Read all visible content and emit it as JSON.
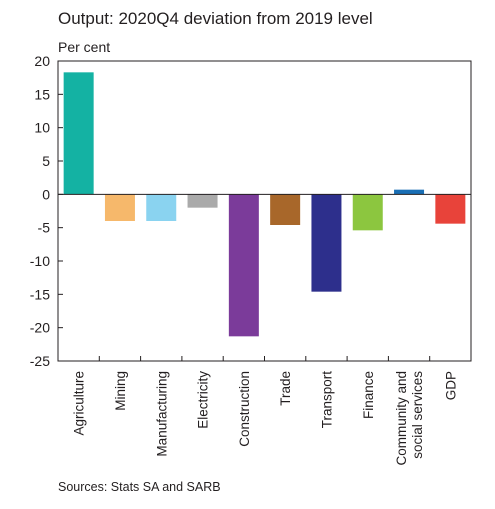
{
  "chart_data": {
    "type": "bar",
    "title": "Output: 2020Q4 deviation from 2019 level",
    "ylabel": "Per cent",
    "source": "Sources: Stats SA and SARB",
    "categories": [
      [
        "Agriculture"
      ],
      [
        "Mining"
      ],
      [
        "Manufacturing"
      ],
      [
        "Electricity"
      ],
      [
        "Construction"
      ],
      [
        "Trade"
      ],
      [
        "Transport"
      ],
      [
        "Finance"
      ],
      [
        "Community and",
        "social services"
      ],
      [
        "GDP"
      ]
    ],
    "values": [
      18.3,
      -4.0,
      -4.0,
      -2.0,
      -21.3,
      -4.6,
      -14.6,
      -5.4,
      0.7,
      -4.4
    ],
    "colors": [
      "#14b2a3",
      "#f6b86b",
      "#8ad3f0",
      "#aaaaaa",
      "#7b3b9a",
      "#a8672a",
      "#2d2f8c",
      "#8cc63f",
      "#1a6fb5",
      "#e8433a"
    ],
    "ylim": [
      -25,
      20
    ],
    "yticks": [
      20,
      15,
      10,
      5,
      0,
      -5,
      -10,
      -15,
      -20,
      -25
    ],
    "grid": false,
    "legend": "none"
  }
}
